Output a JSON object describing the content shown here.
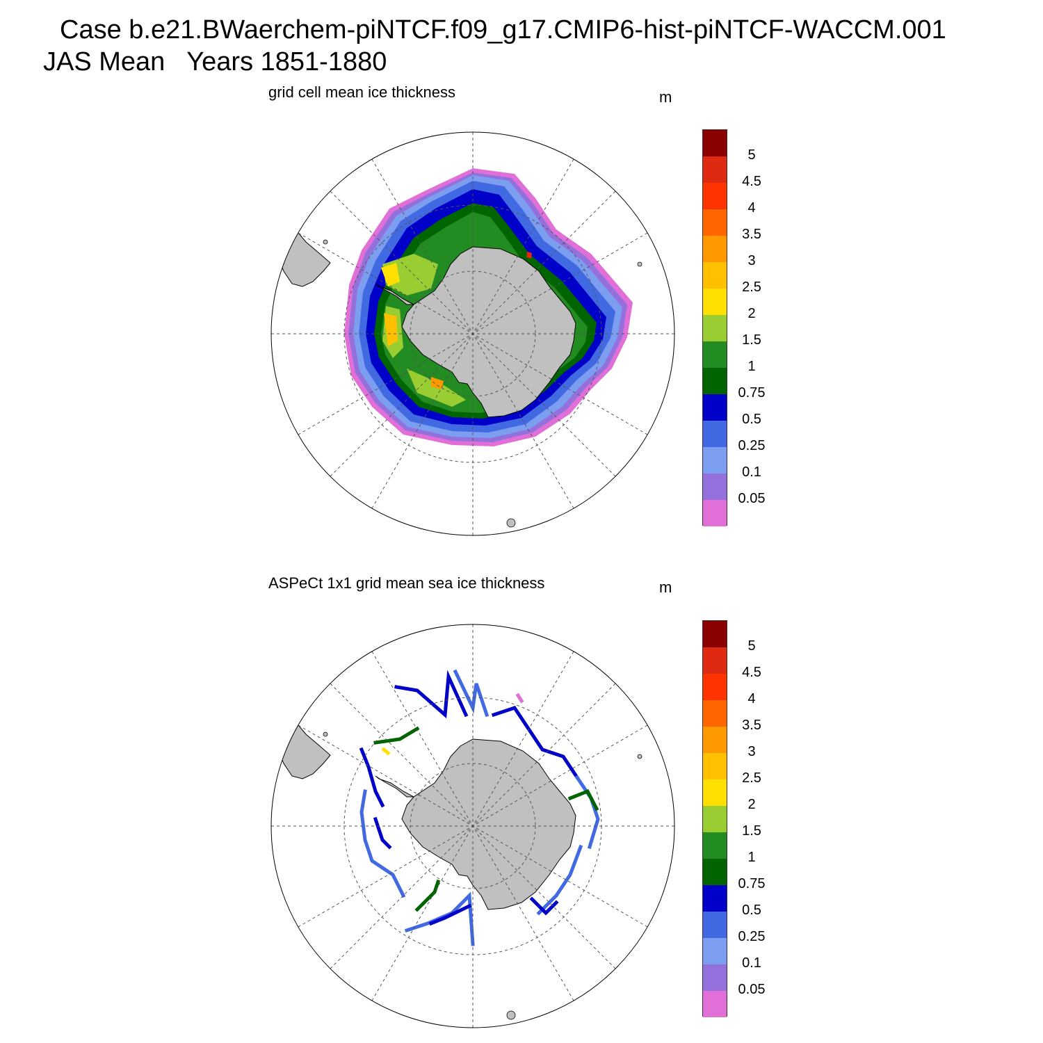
{
  "header": {
    "case": "Case b.e21.BWaerchem-piNTCF.f09_g17.CMIP6-hist-piNTCF-WACCM.001",
    "period": "JAS Mean   Years 1851-1880"
  },
  "panels": [
    {
      "title": "grid cell mean ice thickness",
      "unit": "m",
      "kind": "model"
    },
    {
      "title": "ASPeCt 1x1 grid mean sea ice thickness",
      "unit": "m",
      "kind": "observation"
    }
  ],
  "colorbar": {
    "labels": [
      "0.05",
      "0.1",
      "0.25",
      "0.5",
      "0.75",
      "1",
      "1.5",
      "2",
      "2.5",
      "3",
      "3.5",
      "4",
      "4.5",
      "5"
    ],
    "colors": [
      "#e070d8",
      "#9370db",
      "#7b9ef0",
      "#4169e1",
      "#0000c8",
      "#006400",
      "#228b22",
      "#9acd32",
      "#ffe000",
      "#ffc000",
      "#ff9900",
      "#ff6600",
      "#ff3300",
      "#dd2a10",
      "#8b0000"
    ]
  },
  "map_colors": {
    "land": "#c0c0c0",
    "ocean": "#ffffff",
    "grid": "#555555"
  }
}
